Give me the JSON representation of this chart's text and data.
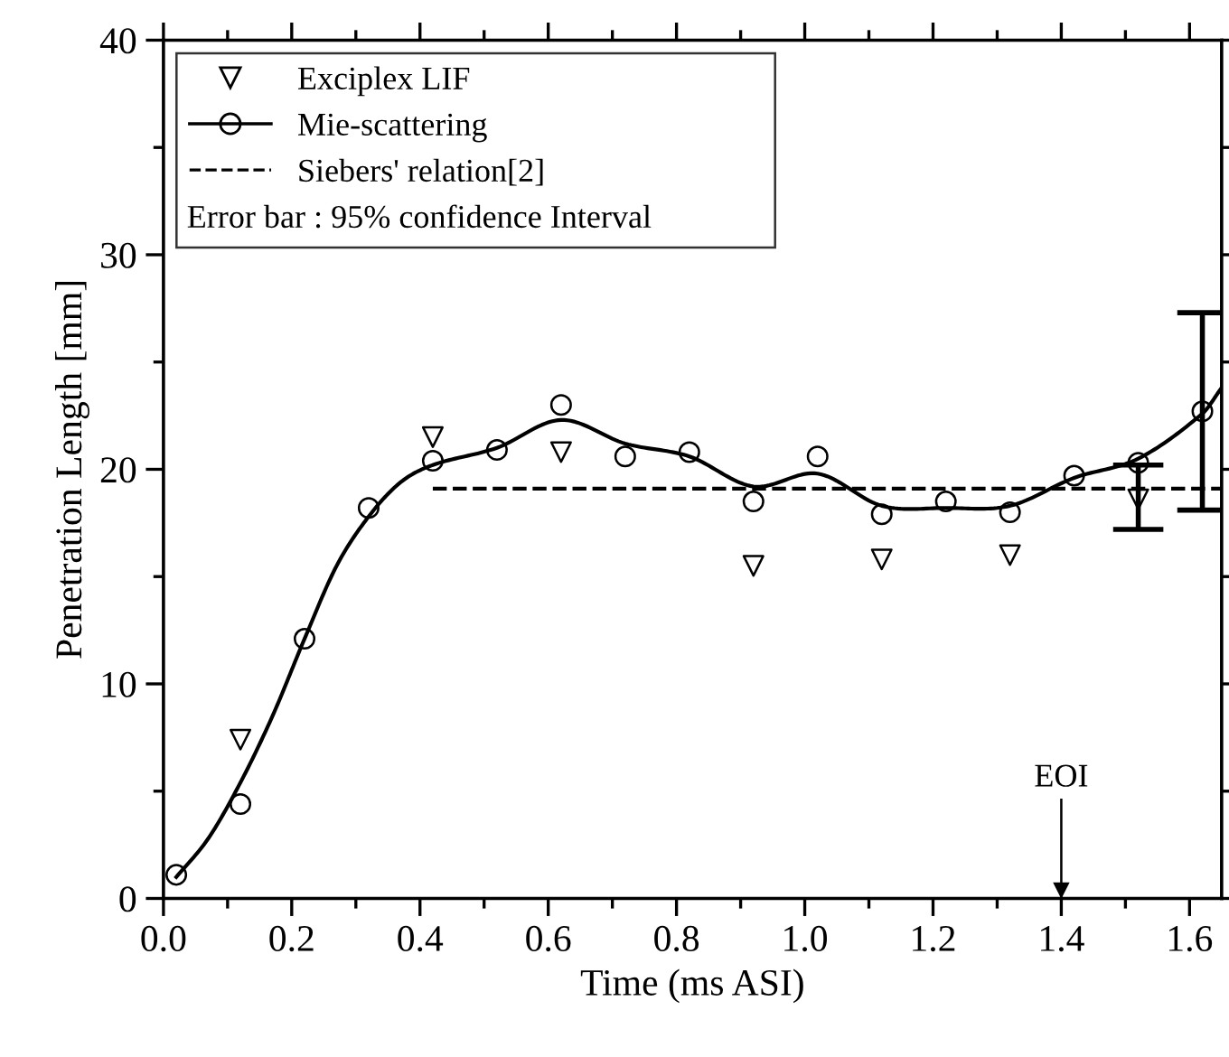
{
  "chart_data": {
    "type": "scatter",
    "xlabel": "Time (ms ASI)",
    "ylabel": "Penetration Length [mm]",
    "xlim": [
      0,
      1.65
    ],
    "ylim": [
      0,
      40
    ],
    "xticks": [
      {
        "value": 0,
        "label": "0.0"
      },
      {
        "value": 0.2,
        "label": "0.2"
      },
      {
        "value": 0.4,
        "label": "0.4"
      },
      {
        "value": 0.6,
        "label": "0.6"
      },
      {
        "value": 0.8,
        "label": "0.8"
      },
      {
        "value": 1.0,
        "label": "1.0"
      },
      {
        "value": 1.2,
        "label": "1.2"
      },
      {
        "value": 1.4,
        "label": "1.4"
      },
      {
        "value": 1.6,
        "label": "1.6"
      }
    ],
    "yticks": [
      0,
      10,
      20,
      30,
      40
    ],
    "grid": false,
    "legend": "top left",
    "series": [
      {
        "name": "Exciplex LIF",
        "marker": "triangle",
        "color": "#000000",
        "x": [
          0.12,
          0.42,
          0.62,
          0.92,
          1.12,
          1.32,
          1.52
        ],
        "values": [
          7.4,
          21.5,
          20.8,
          15.5,
          15.8,
          16.0,
          18.6
        ],
        "errors": [
          null,
          null,
          null,
          null,
          null,
          null,
          [
            17.2,
            20.2
          ]
        ]
      },
      {
        "name": "Mie-scattering",
        "marker": "circle",
        "color": "#000000",
        "x": [
          0.02,
          0.12,
          0.22,
          0.32,
          0.42,
          0.52,
          0.62,
          0.72,
          0.82,
          0.92,
          1.02,
          1.12,
          1.22,
          1.32,
          1.42,
          1.52,
          1.62
        ],
        "values": [
          1.1,
          4.4,
          12.1,
          18.2,
          20.4,
          20.9,
          23.0,
          20.6,
          20.8,
          18.5,
          20.6,
          17.9,
          18.5,
          18.0,
          19.7,
          20.3,
          22.7
        ],
        "errors": [
          null,
          null,
          null,
          null,
          null,
          null,
          null,
          null,
          null,
          null,
          null,
          null,
          null,
          null,
          null,
          null,
          [
            18.1,
            27.3
          ]
        ]
      },
      {
        "type": "line",
        "line_style": "solid",
        "color": "#000000",
        "x": [
          0.02,
          0.07,
          0.12,
          0.17,
          0.22,
          0.27,
          0.32,
          0.37,
          0.42,
          0.52,
          0.62,
          0.72,
          0.82,
          0.92,
          1.02,
          1.12,
          1.22,
          1.32,
          1.42,
          1.52,
          1.62,
          1.65
        ],
        "values": [
          1.0,
          2.8,
          5.4,
          8.5,
          12.1,
          15.5,
          17.8,
          19.4,
          20.2,
          21.0,
          22.3,
          21.2,
          20.6,
          19.2,
          19.8,
          18.3,
          18.2,
          18.3,
          19.6,
          20.5,
          22.6,
          23.8
        ]
      },
      {
        "name": "Siebers' relation[2]",
        "type": "line",
        "line_style": "dashed",
        "color": "#000000",
        "x": [
          0.42,
          1.65
        ],
        "values": [
          19.1,
          19.1
        ]
      }
    ],
    "ref_lines": [
      {
        "axis": "x",
        "value": 1.4,
        "label": "EOI"
      }
    ],
    "annotations": [
      "Error bar : 95% confidence Interval"
    ]
  }
}
